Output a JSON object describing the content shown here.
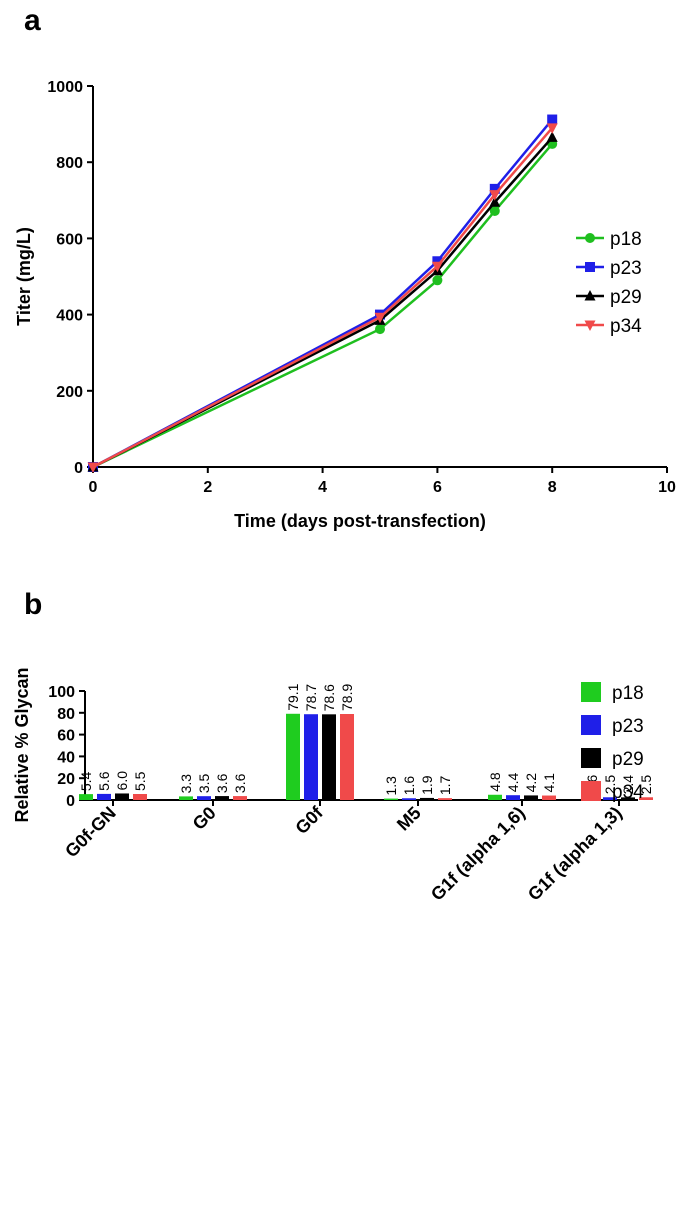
{
  "panel_a_letter": "a",
  "panel_b_letter": "b",
  "chart_data": [
    {
      "type": "line",
      "xlabel": "Time (days post-transfection)",
      "ylabel": "Titer (mg/L)",
      "xlim": [
        0,
        10
      ],
      "ylim": [
        0,
        1000
      ],
      "xticks": [
        "0",
        "2",
        "4",
        "6",
        "8",
        "10"
      ],
      "yticks": [
        "0",
        "200",
        "400",
        "600",
        "800",
        "1000"
      ],
      "grid": false,
      "legend_position": "right",
      "series": [
        {
          "name": "p18",
          "color": "#1fbf1f",
          "marker": "circle",
          "x": [
            0,
            5,
            6,
            7,
            8
          ],
          "y": [
            0,
            362,
            490,
            672,
            848
          ]
        },
        {
          "name": "p23",
          "color": "#1f1fe8",
          "marker": "square",
          "x": [
            0,
            5,
            6,
            7,
            8
          ],
          "y": [
            0,
            400,
            540,
            730,
            912
          ]
        },
        {
          "name": "p29",
          "color": "#000000",
          "marker": "triangle-up",
          "x": [
            0,
            5,
            6,
            7,
            8
          ],
          "y": [
            0,
            385,
            515,
            695,
            865
          ]
        },
        {
          "name": "p34",
          "color": "#f04a4a",
          "marker": "triangle-down",
          "x": [
            0,
            5,
            6,
            7,
            8
          ],
          "y": [
            0,
            393,
            527,
            715,
            890
          ]
        }
      ]
    },
    {
      "type": "bar",
      "ylabel": "Relative %  Glycan",
      "ylim": [
        0,
        100
      ],
      "yticks": [
        "0",
        "20",
        "40",
        "60",
        "80",
        "100"
      ],
      "grid": false,
      "legend_position": "right",
      "categories": [
        "G0f-GN",
        "G0",
        "G0f",
        "M5",
        "G1f (alpha 1,6)",
        "G1f (alpha 1,3)"
      ],
      "series": [
        {
          "name": "p18",
          "color": "#1fcc1f",
          "values": [
            5.4,
            3.3,
            79.1,
            1.3,
            4.8,
            2.6
          ],
          "labels": [
            "5.4",
            "3.3",
            "79.1",
            "1.3",
            "4.8",
            "2.6"
          ]
        },
        {
          "name": "p23",
          "color": "#1f1fe8",
          "values": [
            5.6,
            3.5,
            78.7,
            1.6,
            4.4,
            2.5
          ],
          "labels": [
            "5.6",
            "3.5",
            "78.7",
            "1.6",
            "4.4",
            "2.5"
          ]
        },
        {
          "name": "p29",
          "color": "#000000",
          "values": [
            6.0,
            3.6,
            78.6,
            1.9,
            4.2,
            2.4
          ],
          "labels": [
            "6.0",
            "3.6",
            "78.6",
            "1.9",
            "4.2",
            "2.4"
          ]
        },
        {
          "name": "p34",
          "color": "#f04a4a",
          "values": [
            5.5,
            3.6,
            78.9,
            1.7,
            4.1,
            2.5
          ],
          "labels": [
            "5.5",
            "3.6",
            "78.9",
            "1.7",
            "4.1",
            "2.5"
          ]
        }
      ]
    }
  ]
}
